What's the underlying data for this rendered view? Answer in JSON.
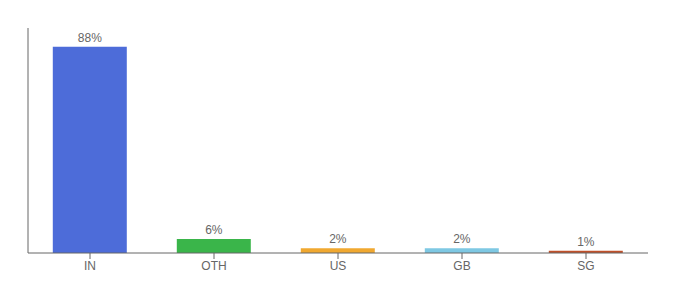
{
  "chart_data": {
    "type": "bar",
    "categories": [
      "IN",
      "OTH",
      "US",
      "GB",
      "SG"
    ],
    "values": [
      88,
      6,
      2,
      2,
      1
    ],
    "value_labels": [
      "88%",
      "6%",
      "2%",
      "2%",
      "1%"
    ],
    "colors": [
      "#4d6cd9",
      "#3ab54a",
      "#f0a830",
      "#7ec8e3",
      "#c0502a"
    ],
    "ylim": [
      0,
      96
    ],
    "data_labels": true,
    "tick_labels": "x"
  }
}
